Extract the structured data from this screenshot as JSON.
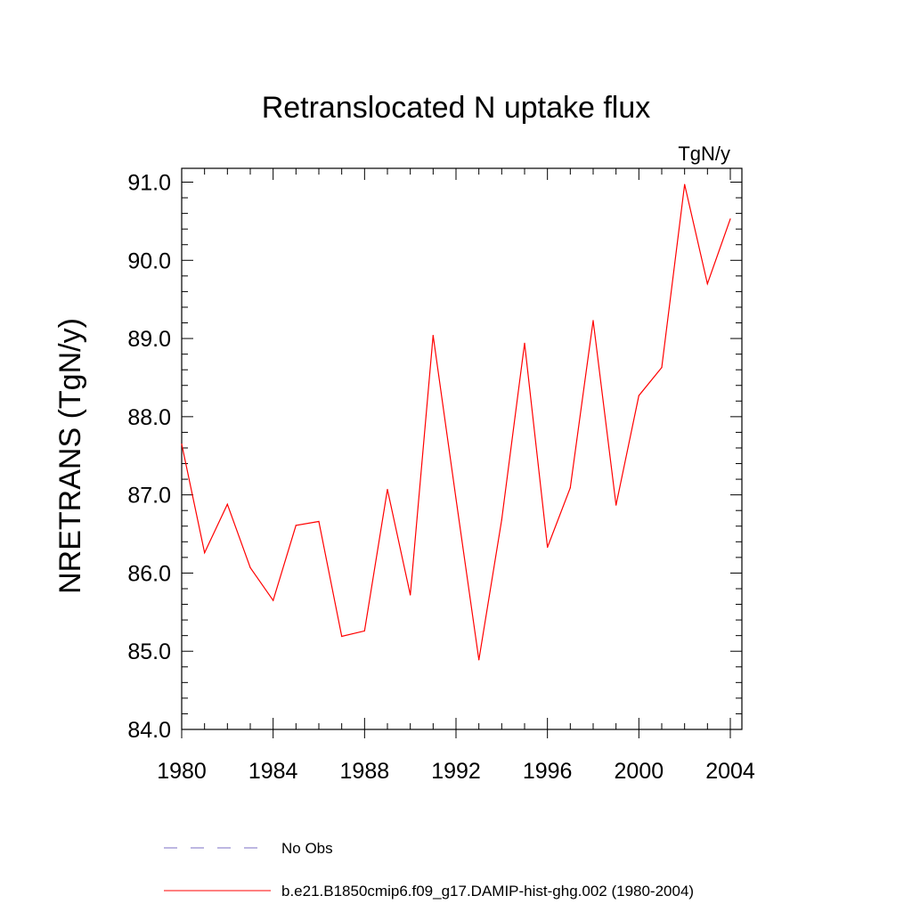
{
  "chart_data": {
    "type": "line",
    "title": "Retranslocated N uptake flux",
    "units": "TgN/y",
    "xlabel": "",
    "ylabel": "NRETRANS  (TgN/y)",
    "xlim": [
      1980,
      2004
    ],
    "ylim": [
      84.0,
      91.2
    ],
    "x_ticks": [
      1980,
      1984,
      1988,
      1992,
      1996,
      2000,
      2004
    ],
    "x_tick_labels": [
      "1980",
      "1984",
      "1988",
      "1992",
      "1996",
      "2000",
      "2004"
    ],
    "y_ticks": [
      84.0,
      85.0,
      86.0,
      87.0,
      88.0,
      89.0,
      90.0,
      91.0
    ],
    "y_tick_labels": [
      "84.0",
      "85.0",
      "86.0",
      "87.0",
      "88.0",
      "89.0",
      "90.0",
      "91.0"
    ],
    "grid": false,
    "legend_position": "bottom",
    "series": [
      {
        "name": "b.e21.B1850cmip6.f09_g17.DAMIP-hist-ghg.002 (1980-2004)",
        "color": "#ff0000",
        "style": "solid",
        "x": [
          1980,
          1981,
          1982,
          1983,
          1984,
          1985,
          1986,
          1987,
          1988,
          1989,
          1990,
          1991,
          1992,
          1993,
          1994,
          1995,
          1996,
          1997,
          1998,
          1999,
          2000,
          2001,
          2002,
          2003,
          2004
        ],
        "y": [
          87.65,
          86.26,
          86.88,
          86.07,
          85.65,
          86.61,
          86.66,
          85.19,
          85.26,
          87.07,
          85.72,
          89.04,
          86.95,
          84.89,
          86.68,
          88.94,
          86.33,
          87.09,
          89.23,
          86.87,
          88.27,
          88.63,
          90.97,
          89.7,
          90.53
        ]
      }
    ],
    "legend": [
      {
        "label": "No Obs",
        "color": "#7b6fc4",
        "style": "dashed"
      },
      {
        "label": "b.e21.B1850cmip6.f09_g17.DAMIP-hist-ghg.002 (1980-2004)",
        "color": "#ff0000",
        "style": "solid"
      }
    ]
  }
}
